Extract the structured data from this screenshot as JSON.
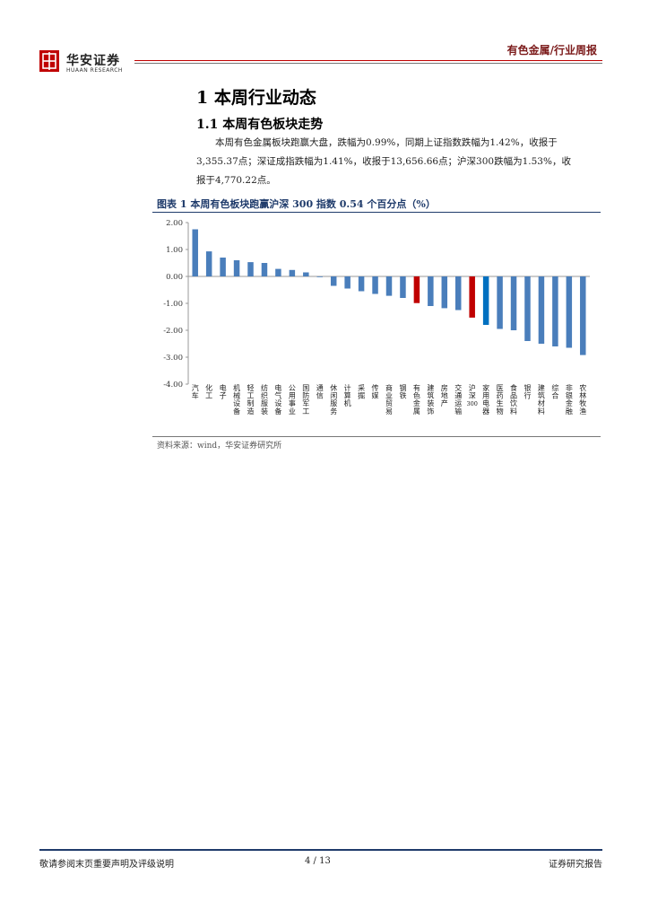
{
  "header": {
    "logo_cn": "华安证券",
    "logo_en": "HUAAN RESEARCH",
    "right_label": "有色金属/行业周报"
  },
  "section": {
    "h1": "1  本周行业动态",
    "h2": "1.1  本周有色板块走势"
  },
  "paragraph": {
    "lines": [
      "本周有色金属板块跑赢大盘，跌幅为0.99%，同期上证指数跌幅为1.42%，收报于",
      "3,355.37点；深证成指跌幅为1.41%，收报于13,656.66点；沪深300跌幅为1.53%，收",
      "报于4,770.22点。"
    ]
  },
  "figure": {
    "title": "图表 1 本周有色板块跑赢沪深 300 指数 0.54 个百分点（%）",
    "source": "资料来源：wind，华安证券研究所"
  },
  "chart_data": {
    "type": "bar",
    "title": "图表 1 本周有色板块跑赢沪深 300 指数 0.54 个百分点（%）",
    "xlabel": "",
    "ylabel": "",
    "ylim": [
      -4.0,
      2.0
    ],
    "ytick_labels": [
      "2.00",
      "1.00",
      "0.00",
      "-1.00",
      "-2.00",
      "-3.00",
      "-4.00"
    ],
    "grid": false,
    "colors": {
      "default": "#4a7ebb",
      "highlight_red": "#c00000",
      "highlight_blue": "#0070c0"
    },
    "categories": [
      "汽车",
      "化工",
      "电子",
      "机械设备",
      "轻工制造",
      "纺织服装",
      "电气设备",
      "公用事业",
      "国防军工",
      "通信",
      "休闲服务",
      "计算机",
      "采掘",
      "传媒",
      "商业贸易",
      "钢铁",
      "有色金属",
      "建筑装饰",
      "房地产",
      "交通运输",
      "沪深300",
      "家用电器",
      "医药生物",
      "食品饮料",
      "银行",
      "建筑材料",
      "综合",
      "非银金融",
      "农林牧渔"
    ],
    "values": [
      1.75,
      0.93,
      0.7,
      0.6,
      0.53,
      0.5,
      0.28,
      0.24,
      0.15,
      -0.02,
      -0.35,
      -0.45,
      -0.55,
      -0.65,
      -0.72,
      -0.8,
      -0.99,
      -1.1,
      -1.18,
      -1.25,
      -1.53,
      -1.8,
      -1.95,
      -2.0,
      -2.4,
      -2.5,
      -2.6,
      -2.65,
      -2.92
    ],
    "bar_colors": [
      "default",
      "default",
      "default",
      "default",
      "default",
      "default",
      "default",
      "default",
      "default",
      "default",
      "default",
      "default",
      "default",
      "default",
      "default",
      "default",
      "highlight_red",
      "default",
      "default",
      "default",
      "highlight_red",
      "highlight_blue",
      "default",
      "default",
      "default",
      "default",
      "default",
      "default",
      "default"
    ]
  },
  "footer": {
    "left": "敬请参阅末页重要声明及评级说明",
    "page": "4 / 13",
    "right": "证券研究报告"
  }
}
